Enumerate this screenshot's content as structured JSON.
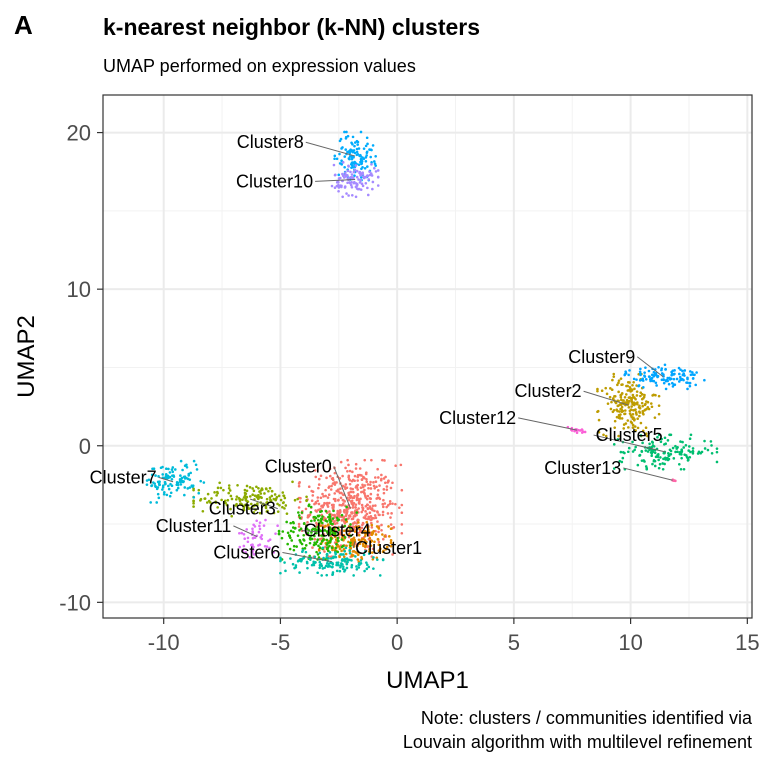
{
  "panel_tag": "A",
  "chart_data": {
    "type": "scatter",
    "title": "k-nearest neighbor (k-NN) clusters",
    "subtitle": "UMAP performed on expression values",
    "xlabel": "UMAP1",
    "ylabel": "UMAP2",
    "xlim": [
      -12.6,
      15.2
    ],
    "ylim": [
      -11.0,
      22.4
    ],
    "xticks": [
      -10,
      -5,
      0,
      5,
      10,
      15
    ],
    "yticks": [
      -10,
      0,
      10,
      20
    ],
    "grid": true,
    "legend": "none",
    "caption": [
      "Note: clusters / communities identified via",
      "Louvain algorithm with multilevel refinement"
    ],
    "clusters": [
      {
        "name": "Cluster0",
        "color": "#F8766D",
        "center": [
          -2.0,
          -4.0
        ],
        "spread": [
          1.0,
          1.4
        ],
        "n": 520,
        "label_pos": [
          -2.8,
          -1.7
        ],
        "label_anchor": "end"
      },
      {
        "name": "Cluster1",
        "color": "#E18A00",
        "center": [
          -1.8,
          -6.1
        ],
        "spread": [
          0.7,
          0.6
        ],
        "n": 160,
        "label_pos": [
          -1.8,
          -6.9
        ],
        "label_anchor": "start"
      },
      {
        "name": "Cluster2",
        "color": "#BE9C00",
        "center": [
          9.9,
          2.6
        ],
        "spread": [
          0.6,
          0.9
        ],
        "n": 200,
        "label_pos": [
          7.9,
          3.1
        ],
        "label_anchor": "end"
      },
      {
        "name": "Cluster3",
        "color": "#8CAB00",
        "center": [
          -6.3,
          -3.4
        ],
        "spread": [
          1.1,
          0.5
        ],
        "n": 160,
        "label_pos": [
          -5.2,
          -4.4
        ],
        "label_anchor": "end"
      },
      {
        "name": "Cluster4",
        "color": "#24B700",
        "center": [
          -3.3,
          -5.5
        ],
        "spread": [
          0.8,
          0.8
        ],
        "n": 190,
        "label_pos": [
          -4.0,
          -5.8
        ],
        "label_anchor": "start"
      },
      {
        "name": "Cluster5",
        "color": "#00BE70",
        "center": [
          11.5,
          -0.4
        ],
        "spread": [
          1.0,
          0.5
        ],
        "n": 150,
        "label_pos": [
          8.5,
          0.3
        ],
        "label_anchor": "start"
      },
      {
        "name": "Cluster6",
        "color": "#00C1AB",
        "center": [
          -2.8,
          -7.4
        ],
        "spread": [
          1.0,
          0.4
        ],
        "n": 150,
        "label_pos": [
          -5.0,
          -7.2
        ],
        "label_anchor": "end"
      },
      {
        "name": "Cluster7",
        "color": "#00BBDA",
        "center": [
          -9.6,
          -2.3
        ],
        "spread": [
          0.6,
          0.6
        ],
        "n": 110,
        "label_pos": [
          -10.3,
          -2.4
        ],
        "label_anchor": "end"
      },
      {
        "name": "Cluster8",
        "color": "#00ACFC",
        "center": [
          -1.8,
          18.5
        ],
        "spread": [
          0.4,
          0.7
        ],
        "n": 120,
        "label_pos": [
          -4.0,
          19.0
        ],
        "label_anchor": "end"
      },
      {
        "name": "Cluster9",
        "color": "#00A5FF",
        "center": [
          11.4,
          4.4
        ],
        "spread": [
          0.8,
          0.35
        ],
        "n": 120,
        "label_pos": [
          10.2,
          5.3
        ],
        "label_anchor": "end"
      },
      {
        "name": "Cluster10",
        "color": "#A58AFF",
        "center": [
          -1.8,
          17.0
        ],
        "spread": [
          0.45,
          0.5
        ],
        "n": 110,
        "label_pos": [
          -3.6,
          16.5
        ],
        "label_anchor": "end"
      },
      {
        "name": "Cluster11",
        "color": "#DF70F8",
        "center": [
          -6.0,
          -5.8
        ],
        "spread": [
          0.4,
          0.6
        ],
        "n": 50,
        "label_pos": [
          -7.1,
          -5.5
        ],
        "label_anchor": "end"
      },
      {
        "name": "Cluster12",
        "color": "#FB61D7",
        "center": [
          7.7,
          1.0
        ],
        "spread": [
          0.3,
          0.1
        ],
        "n": 18,
        "label_pos": [
          5.1,
          1.4
        ],
        "label_anchor": "end"
      },
      {
        "name": "Cluster13",
        "color": "#FF66A8",
        "center": [
          11.8,
          -2.2
        ],
        "spread": [
          0.06,
          0.06
        ],
        "n": 6,
        "label_pos": [
          9.6,
          -1.8
        ],
        "label_anchor": "end"
      }
    ]
  }
}
